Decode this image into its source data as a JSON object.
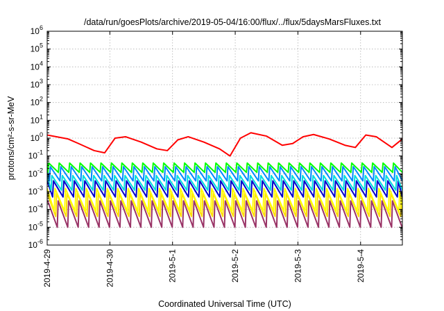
{
  "chart_data": {
    "type": "line",
    "title": "/data/run/goesPlots/archive/2019-05-04/16:00/flux/../flux/5daysMarsFluxes.txt",
    "xlabel": "Coordinated Universal Time (UTC)",
    "ylabel": "protons/cm²-s-sr-MeV",
    "y_scale": "log",
    "ylim": [
      1e-06,
      1000000.0
    ],
    "xlim": [
      "2019-04-29T00:00",
      "2019-05-04T16:00"
    ],
    "x_tick_labels": [
      "2019-4-29",
      "2019-4-30",
      "2019-5-1",
      "2019-5-2",
      "2019-5-3",
      "2019-5-4"
    ],
    "y_ticks": [
      {
        "base": "10",
        "exp": "-6"
      },
      {
        "base": "10",
        "exp": "-5"
      },
      {
        "base": "10",
        "exp": "-4"
      },
      {
        "base": "10",
        "exp": "-3"
      },
      {
        "base": "10",
        "exp": "-2"
      },
      {
        "base": "10",
        "exp": "-1"
      },
      {
        "base": "10",
        "exp": "0"
      },
      {
        "base": "10",
        "exp": "1"
      },
      {
        "base": "10",
        "exp": "2"
      },
      {
        "base": "10",
        "exp": "3"
      },
      {
        "base": "10",
        "exp": "4"
      },
      {
        "base": "10",
        "exp": "5"
      },
      {
        "base": "10",
        "exp": "6"
      }
    ],
    "grid": true,
    "legend": "none",
    "series": [
      {
        "color": "#ff0000",
        "pattern": "sawtooth",
        "period_hours": 24,
        "x": [
          "2019-04-29T00:00",
          "2019-04-29T08:00",
          "2019-04-29T12:00",
          "2019-04-29T18:00",
          "2019-04-29T22:00",
          "2019-04-30T02:00",
          "2019-04-30T06:00",
          "2019-04-30T12:00",
          "2019-04-30T18:00",
          "2019-04-30T22:00",
          "2019-05-01T02:00",
          "2019-05-01T06:00",
          "2019-05-01T12:00",
          "2019-05-01T18:00",
          "2019-05-01T22:00",
          "2019-05-02T02:00",
          "2019-05-02T06:00",
          "2019-05-02T12:00",
          "2019-05-02T18:00",
          "2019-05-02T22:00",
          "2019-05-03T02:00",
          "2019-05-03T06:00",
          "2019-05-03T12:00",
          "2019-05-03T18:00",
          "2019-05-03T22:00",
          "2019-05-04T02:00",
          "2019-05-04T06:00",
          "2019-05-04T12:00",
          "2019-05-04T16:00"
        ],
        "y": [
          1.5,
          0.9,
          0.5,
          0.2,
          0.15,
          1.0,
          1.2,
          0.6,
          0.25,
          0.2,
          0.8,
          1.2,
          0.6,
          0.25,
          0.1,
          1.0,
          2.0,
          1.3,
          0.4,
          0.5,
          1.2,
          1.6,
          0.9,
          0.4,
          0.3,
          1.5,
          1.2,
          0.3,
          0.9
        ]
      },
      {
        "color": "#00ff00",
        "pattern": "sawtooth",
        "period_hours": 4,
        "y_high": 0.04,
        "y_low": 0.012
      },
      {
        "color": "#0088ff",
        "pattern": "sawtooth",
        "period_hours": 4,
        "y_high": 0.025,
        "y_low": 0.004
      },
      {
        "color": "#00dddd",
        "pattern": "sawtooth",
        "period_hours": 4,
        "y_high": 0.008,
        "y_low": 0.0012
      },
      {
        "color": "#0000cc",
        "pattern": "sawtooth",
        "period_hours": 4,
        "y_high": 0.004,
        "y_low": 0.0005
      },
      {
        "color": "#ffff00",
        "pattern": "sawtooth",
        "period_hours": 4,
        "y_high": 0.0015,
        "y_low": 8e-05
      },
      {
        "color": "#ffdd00",
        "pattern": "sawtooth",
        "period_hours": 4,
        "y_high": 0.0008,
        "y_low": 4e-05
      },
      {
        "color": "#993366",
        "pattern": "sawtooth",
        "period_hours": 4,
        "y_high": 0.0003,
        "y_low": 1e-05
      }
    ]
  }
}
